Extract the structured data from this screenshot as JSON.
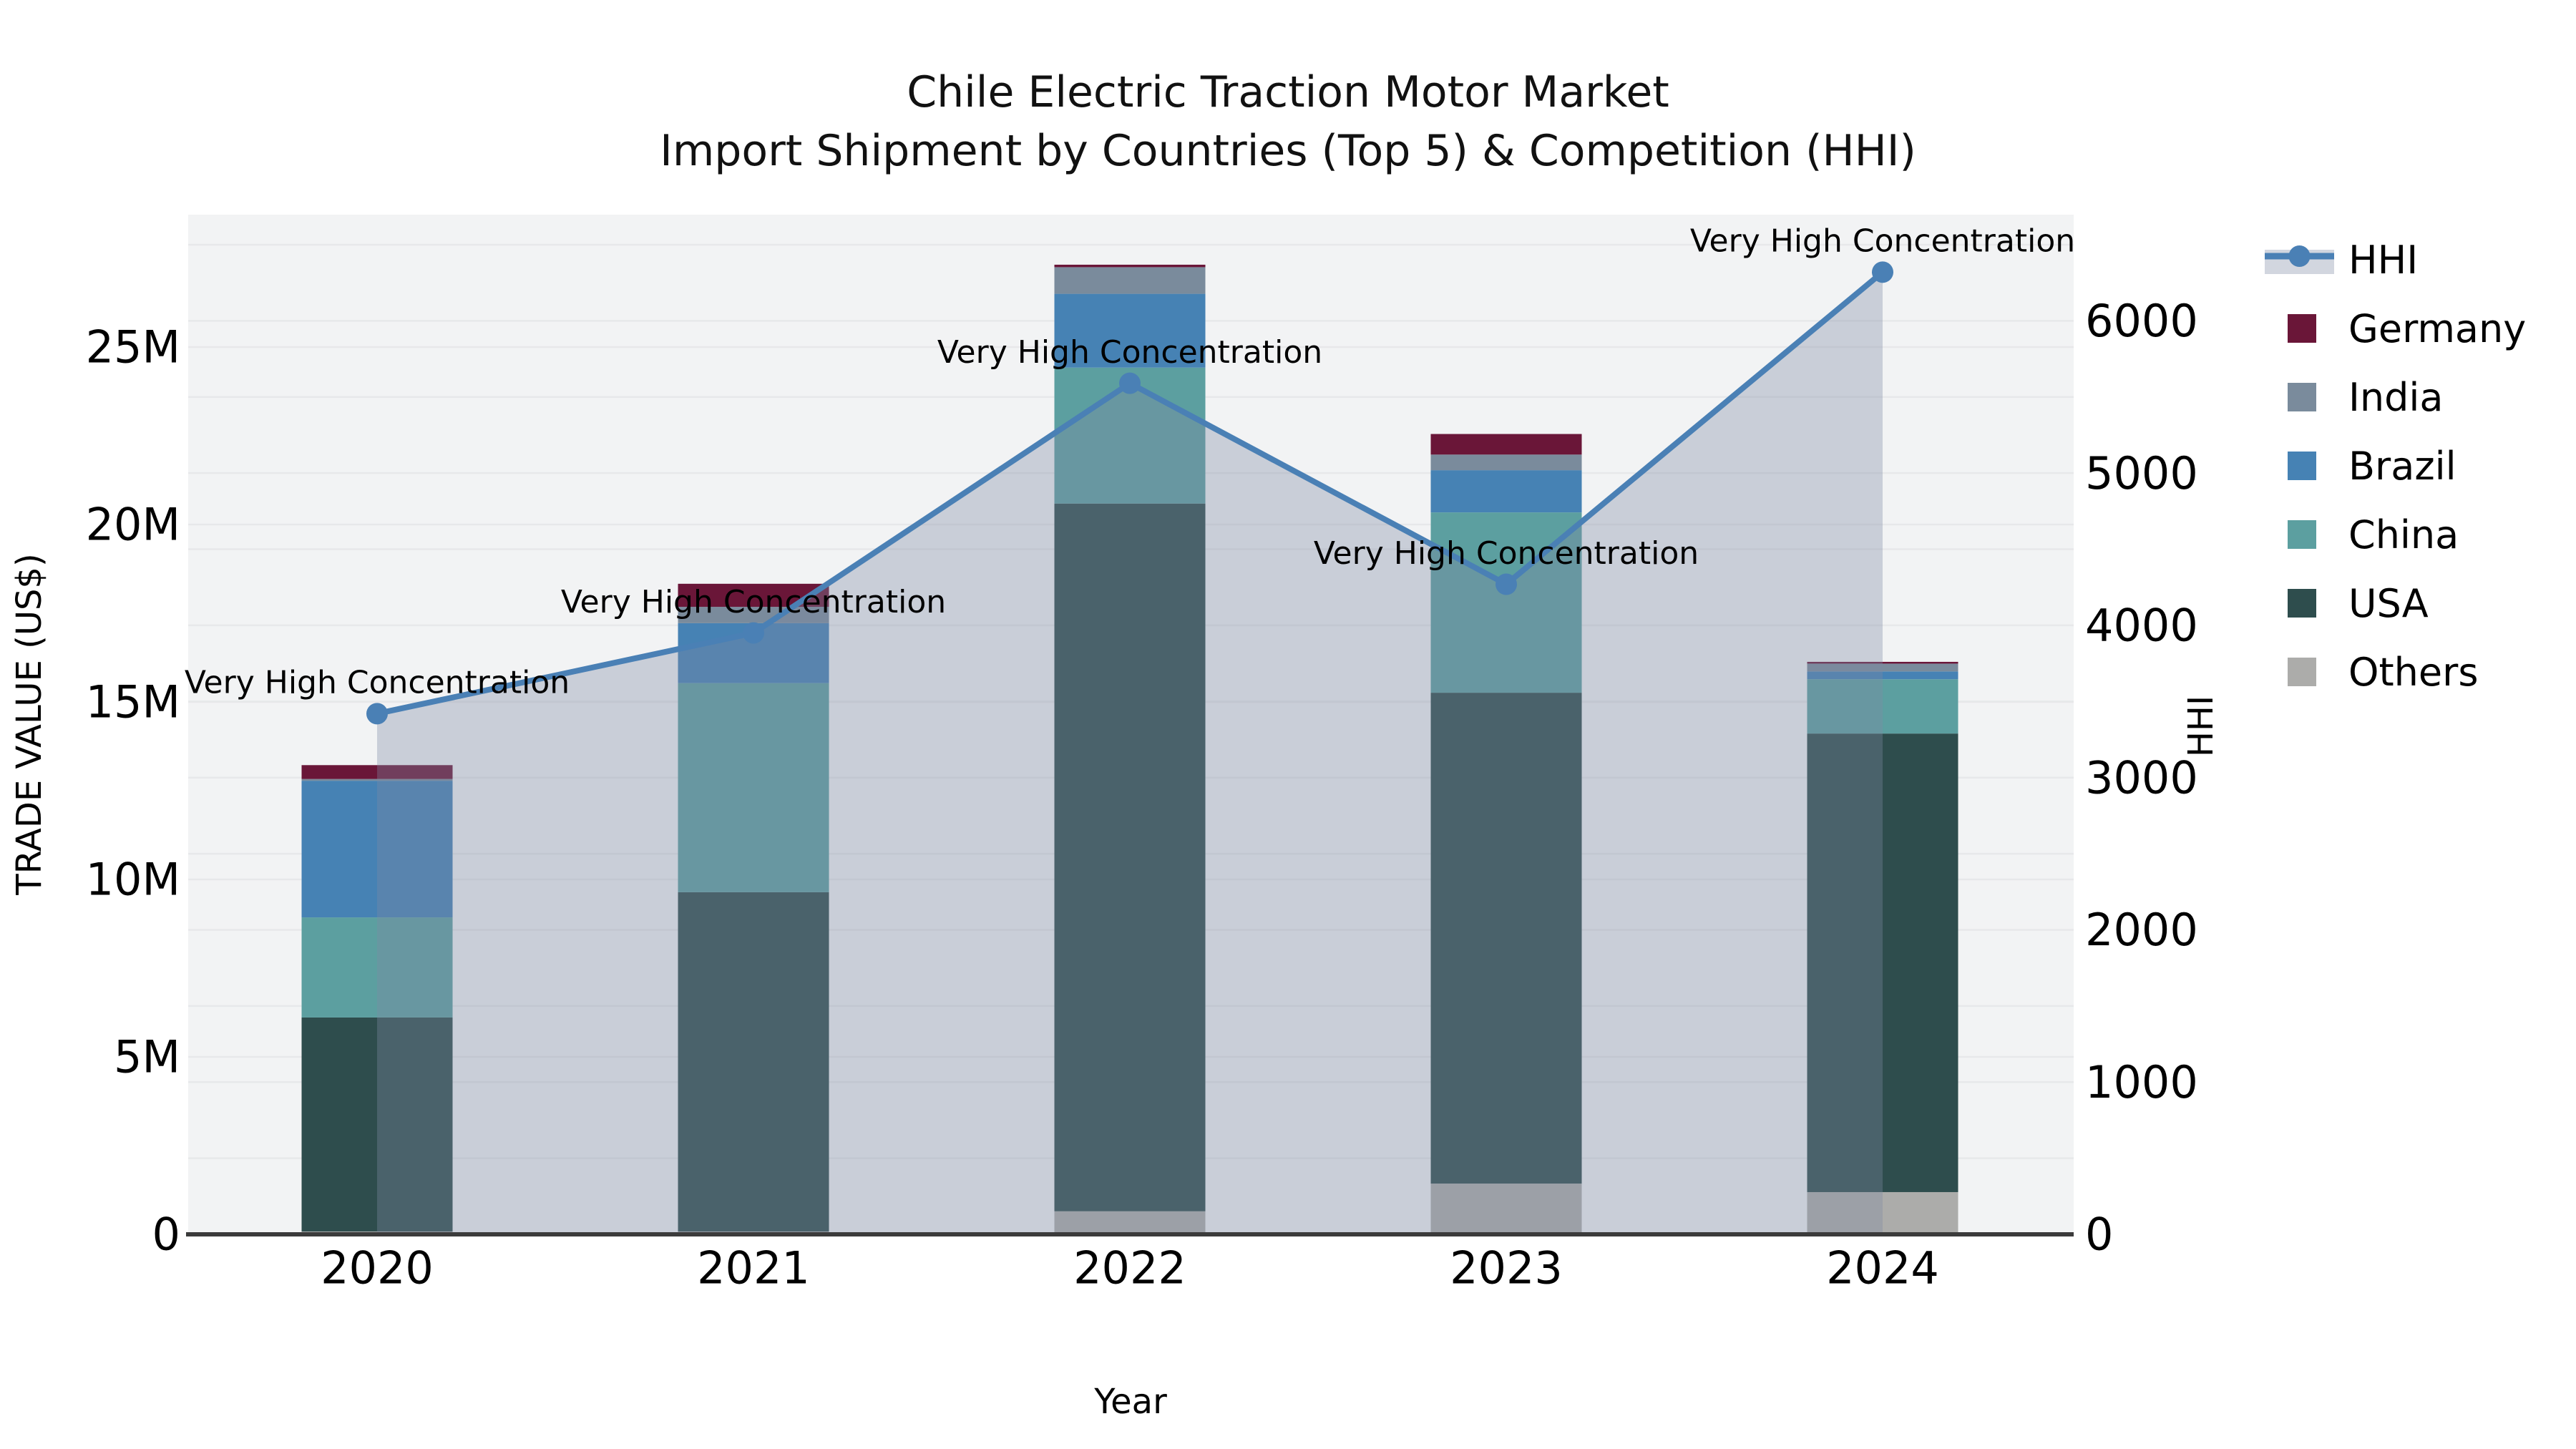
{
  "figure": {
    "title_line1": "Chile Electric Traction Motor Market",
    "title_line2": "Import Shipment by Countries (Top 5) & Competition (HHI)"
  },
  "chart_data": {
    "type": "combo: stacked bar (trade value by country) + line (HHI) with shaded area",
    "categories": [
      "2020",
      "2021",
      "2022",
      "2023",
      "2024"
    ],
    "bar_unit": "million US$",
    "stack_order_bottom_to_top": [
      "Others",
      "USA",
      "China",
      "Brazil",
      "India",
      "Germany"
    ],
    "series": [
      {
        "name": "Others",
        "color": "#ACACAA",
        "values": [
          0.08,
          0.08,
          0.65,
          1.43,
          1.19
        ]
      },
      {
        "name": "USA",
        "color": "#2E4D4D",
        "values": [
          6.03,
          9.56,
          19.94,
          13.83,
          12.92
        ]
      },
      {
        "name": "China",
        "color": "#5C9FA0",
        "values": [
          2.82,
          5.89,
          3.83,
          5.08,
          1.53
        ]
      },
      {
        "name": "Brazil",
        "color": "#4682B4",
        "values": [
          3.85,
          1.69,
          2.08,
          1.19,
          0.22
        ]
      },
      {
        "name": "India",
        "color": "#7A8B9C",
        "values": [
          0.05,
          0.46,
          0.75,
          0.44,
          0.22
        ]
      },
      {
        "name": "Germany",
        "color": "#6A1638",
        "values": [
          0.39,
          0.65,
          0.07,
          0.58,
          0.05
        ]
      }
    ],
    "bar_totals_millions": [
      13.22,
      18.33,
      27.32,
      22.55,
      16.13
    ],
    "hhi_line": {
      "name": "HHI",
      "values": [
        3420,
        3950,
        5590,
        4270,
        6320
      ],
      "line_color": "#4A80B5",
      "marker_color": "#4A80B5",
      "area_fill": "rgba(125,137,164,0.35)"
    },
    "annotations": {
      "text": "Very High Concentration",
      "per_point": [
        "Very High Concentration",
        "Very High Concentration",
        "Very High Concentration",
        "Very High Concentration",
        "Very High Concentration"
      ]
    },
    "left_axis": {
      "label": "TRADE VALUE (US$)",
      "tick_labels": [
        "0",
        "5M",
        "10M",
        "15M",
        "20M",
        "25M"
      ],
      "tick_values_millions": [
        0,
        5,
        10,
        15,
        20,
        25
      ],
      "range_millions": [
        0,
        28.7
      ]
    },
    "right_axis": {
      "label": "HHI",
      "tick_labels": [
        "0",
        "1000",
        "2000",
        "3000",
        "4000",
        "5000",
        "6000"
      ],
      "tick_values": [
        0,
        1000,
        2000,
        3000,
        4000,
        5000,
        6000
      ],
      "range": [
        0,
        6700
      ],
      "minor_gridline_step": 500
    },
    "xlabel": "Year",
    "legend": {
      "entries": [
        "HHI",
        "Germany",
        "India",
        "Brazil",
        "China",
        "USA",
        "Others"
      ]
    }
  },
  "colors": {
    "figure_bg": "#ffffff",
    "plot_bg": "#f2f3f4",
    "gridline": "#e7e8ea",
    "axis_line": "#3b3b3b",
    "text": "#000000"
  }
}
